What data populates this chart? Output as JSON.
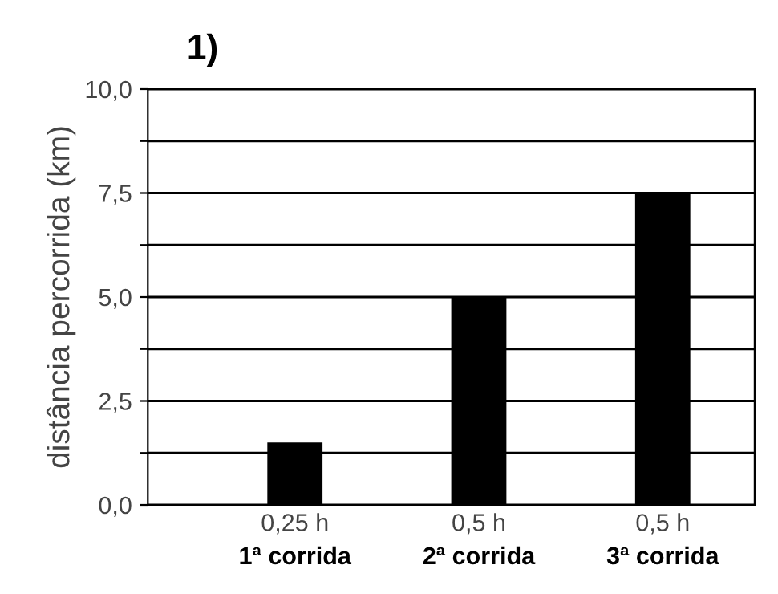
{
  "chart_data": {
    "type": "bar",
    "title": "1)",
    "ylabel": "distância percorrida (km)",
    "categories": [
      "0,25 h\n1ª corrida",
      "0,5 h\n2ª corrida",
      "0,5 h\n3ª corrida"
    ],
    "values": [
      1.5,
      5.0,
      7.5
    ],
    "color": "#000000",
    "ylim": [
      0,
      10
    ],
    "yticks": [
      {
        "value": 0,
        "label": "0,0"
      },
      {
        "value": 1.25,
        "label": null
      },
      {
        "value": 2.5,
        "label": "2,5"
      },
      {
        "value": 3.75,
        "label": null
      },
      {
        "value": 5,
        "label": "5,0"
      },
      {
        "value": 6.25,
        "label": null
      },
      {
        "value": 7.5,
        "label": "7,5"
      },
      {
        "value": 8.75,
        "label": null
      },
      {
        "value": 10,
        "label": "10,0"
      }
    ],
    "grid": "y"
  }
}
